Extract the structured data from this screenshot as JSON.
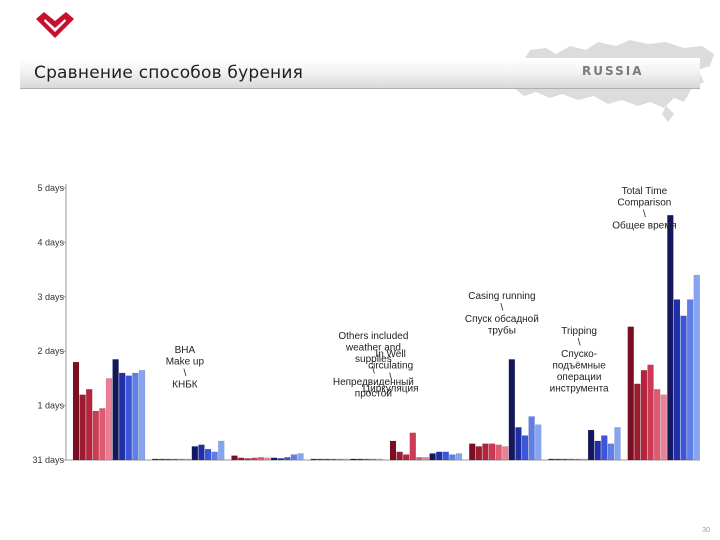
{
  "header": {
    "title": "Сравнение способов бурения",
    "map_label": "RUSSIA"
  },
  "colors": {
    "logo": "#c8102e",
    "map": "#dcdcdc",
    "red_shades": [
      "#7a0f24",
      "#9b1b30",
      "#b5243c",
      "#cd3a53",
      "#de5a70",
      "#ea8095"
    ],
    "blue_shades": [
      "#15175e",
      "#1f2fa8",
      "#3d55d8",
      "#5f7ee8",
      "#86a4f0",
      "#aec6f8"
    ]
  },
  "chart_data": {
    "type": "bar",
    "y_tick_labels": [
      "31 days",
      "1 days",
      "2 days",
      "3 days",
      "4 days",
      "5 days"
    ],
    "ylim": [
      0,
      5
    ],
    "grid": false,
    "groups": [
      {
        "label": "",
        "values": [
          1.8,
          1.2,
          1.3,
          0.9,
          0.95,
          1.5,
          1.85,
          1.6,
          1.55,
          1.6,
          1.65
        ]
      },
      {
        "label": "BHA\nMake up\n\\\nКНБК",
        "values": [
          0.02,
          0.02,
          0.02,
          0.02,
          0.02,
          0.02,
          0.25,
          0.28,
          0.2,
          0.15,
          0.35
        ]
      },
      {
        "label": "",
        "values": [
          0.08,
          0.04,
          0.03,
          0.04,
          0.05,
          0.04,
          0.04,
          0.03,
          0.05,
          0.1,
          0.12
        ]
      },
      {
        "label": "Others included\nweather and\nsupplies\n\\\nНепредвиденный\nпростой",
        "values": [
          0.02,
          0.02,
          0.02,
          0.02,
          0.02,
          0.02,
          0.02,
          0.02,
          0.02,
          0.02,
          0.02
        ]
      },
      {
        "label": "In Well\ncirculating\n\\\nЦиркуляция",
        "values": [
          0.35,
          0.15,
          0.1,
          0.5,
          0.05,
          0.05,
          0.12,
          0.15,
          0.15,
          0.1,
          0.12
        ]
      },
      {
        "label": "Casing running\n\\\nСпуск обсадной\nтрубы",
        "values": [
          0.3,
          0.25,
          0.3,
          0.3,
          0.28,
          0.25,
          1.85,
          0.6,
          0.45,
          0.8,
          0.65
        ]
      },
      {
        "label": "Tripping\n\\\nСпуско-\nподъёмные\nоперации\nинструмента",
        "values": [
          0.02,
          0.02,
          0.02,
          0.02,
          0.02,
          0.02,
          0.55,
          0.35,
          0.45,
          0.3,
          0.6
        ]
      },
      {
        "label": "Total Time\nComparison\n\\\nОбщее время",
        "values": [
          2.45,
          1.4,
          1.65,
          1.75,
          1.3,
          1.2,
          4.5,
          2.95,
          2.65,
          2.95,
          3.4
        ]
      }
    ]
  },
  "footer": {
    "page_number": "30"
  }
}
